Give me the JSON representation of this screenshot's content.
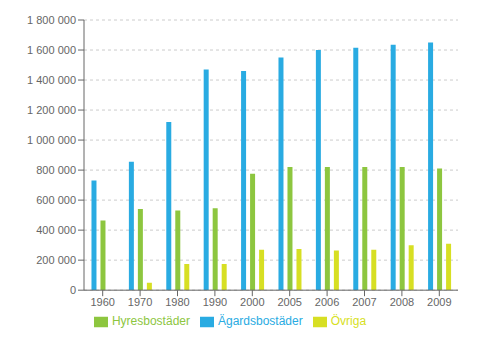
{
  "chart_data": {
    "type": "bar",
    "categories": [
      "1960",
      "1970",
      "1980",
      "1990",
      "2000",
      "2005",
      "2006",
      "2007",
      "2008",
      "2009"
    ],
    "series": [
      {
        "name": "Ägardsbostäder",
        "color": "#29ABE2",
        "values": [
          730000,
          855000,
          1120000,
          1470000,
          1460000,
          1550000,
          1600000,
          1615000,
          1635000,
          1650000
        ]
      },
      {
        "name": "Hyresbostäder",
        "color": "#8DC63F",
        "values": [
          465000,
          540000,
          530000,
          545000,
          775000,
          820000,
          820000,
          820000,
          820000,
          810000
        ]
      },
      {
        "name": "Övriga",
        "color": "#D7DF23",
        "values": [
          0,
          50000,
          175000,
          175000,
          270000,
          275000,
          265000,
          270000,
          300000,
          310000
        ]
      }
    ],
    "ylim": [
      0,
      1800000
    ],
    "yticks": [
      0,
      {
        "value": 200000,
        "label": "200 000"
      },
      {
        "value": 400000,
        "label": "400 000"
      },
      {
        "value": 600000,
        "label": "600 000"
      },
      {
        "value": 800000,
        "label": "800 000"
      },
      {
        "value": 1000000,
        "label": "1 000 000"
      },
      {
        "value": 1200000,
        "label": "1 200 000"
      },
      {
        "value": 1400000,
        "label": "1 400 000"
      },
      {
        "value": 1600000,
        "label": "1 600 000"
      },
      {
        "value": 1800000,
        "label": "1 800 000"
      }
    ],
    "grid": true,
    "legend": "bottom"
  }
}
